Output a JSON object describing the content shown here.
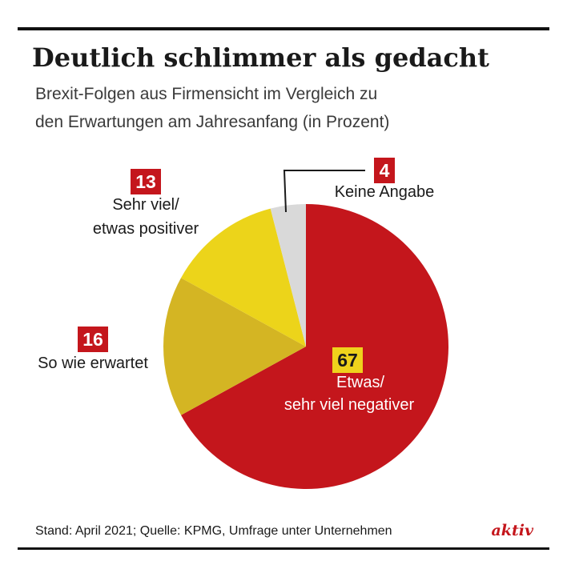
{
  "header": {
    "title": "Deutlich schlimmer als gedacht",
    "subtitle_line1": "Brexit-Folgen aus Firmensicht im Vergleich zu",
    "subtitle_line2": "den Erwartungen am Jahresanfang (in Prozent)"
  },
  "footer": {
    "source": "Stand: April 2021; Quelle: KPMG, Umfrage unter Unternehmen",
    "brand": "aktiv"
  },
  "colors": {
    "rule": "#111111",
    "accent_red": "#c4161c",
    "brand": "#c4161c"
  },
  "chart_data": {
    "type": "pie",
    "unit": "Prozent",
    "slices": [
      {
        "label_lines": [
          "Etwas/",
          "sehr viel negativer"
        ],
        "value": 67,
        "color": "#c4161c",
        "badge_bg": "#efd21c",
        "badge_fg": "#1a1a1a",
        "label_color": "#ffffff"
      },
      {
        "label_lines": [
          "So wie erwartet"
        ],
        "value": 16,
        "color": "#d4b523",
        "badge_bg": "#c4161c",
        "badge_fg": "#ffffff",
        "label_color": "#1a1a1a"
      },
      {
        "label_lines": [
          "Sehr viel/",
          "etwas positiver"
        ],
        "value": 13,
        "color": "#ecd41a",
        "badge_bg": "#c4161c",
        "badge_fg": "#ffffff",
        "label_color": "#1a1a1a"
      },
      {
        "label_lines": [
          "Keine Angabe"
        ],
        "value": 4,
        "color": "#d9d9d9",
        "badge_bg": "#c4161c",
        "badge_fg": "#ffffff",
        "label_color": "#1a1a1a"
      }
    ]
  }
}
